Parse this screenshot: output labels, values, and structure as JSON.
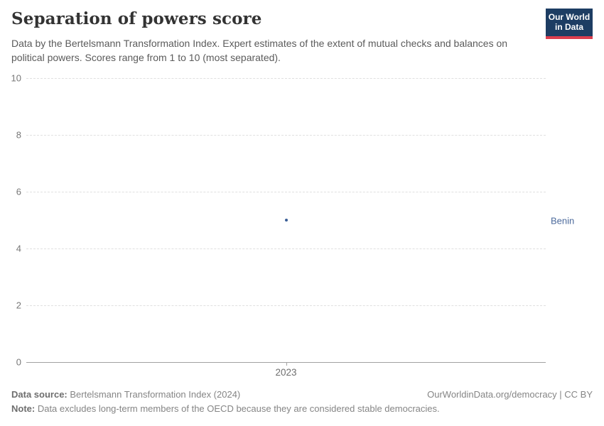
{
  "header": {
    "title": "Separation of powers score",
    "subtitle": "Data by the Bertelsmann Transformation Index. Expert estimates of the extent of mutual checks and balances on political powers. Scores range from 1 to 10 (most separated).",
    "logo": {
      "line1": "Our World",
      "line2": "in Data",
      "bg_color": "#1d3d63",
      "accent_color": "#dc3e4e"
    }
  },
  "chart_data": {
    "type": "scatter",
    "title": "Separation of powers score",
    "x": [
      2023
    ],
    "xtick_labels": [
      "2023"
    ],
    "series": [
      {
        "name": "Benin",
        "values": [
          5
        ],
        "point_color": "#3a5e96",
        "label_color": "#4c6a9c"
      }
    ],
    "ylim": [
      0,
      10
    ],
    "yticks": [
      0,
      2,
      4,
      6,
      8,
      10
    ],
    "xlabel": "",
    "ylabel": "",
    "grid": "horizontal-dashed",
    "legend_position": "right-of-plot-entity-label"
  },
  "footer": {
    "source_label": "Data source:",
    "source_text": " Bertelsmann Transformation Index (2024)",
    "credit": "OurWorldinData.org/democracy | CC BY",
    "note_label": "Note:",
    "note_text": " Data excludes long-term members of the OECD because they are considered stable democracies."
  }
}
